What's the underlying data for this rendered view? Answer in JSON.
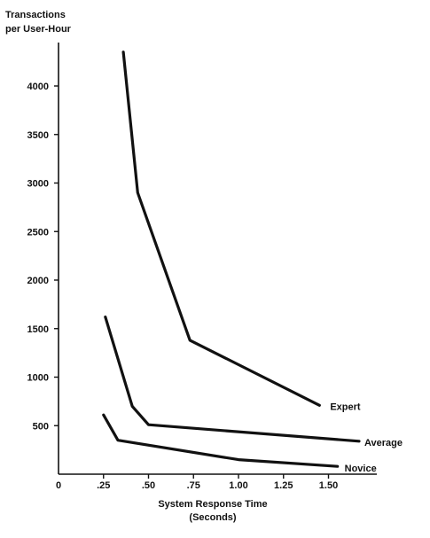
{
  "chart_data": {
    "type": "line",
    "ylabel_lines": [
      "Transactions",
      "per User-Hour"
    ],
    "xlabel_lines": [
      "System Response Time",
      "(Seconds)"
    ],
    "xlim": [
      0,
      1.75
    ],
    "ylim": [
      0,
      4500
    ],
    "x_ticks": [
      {
        "value": 0,
        "label": "0"
      },
      {
        "value": 0.25,
        "label": ".25"
      },
      {
        "value": 0.5,
        "label": ".50"
      },
      {
        "value": 0.75,
        "label": ".75"
      },
      {
        "value": 1.0,
        "label": "1.00"
      },
      {
        "value": 1.25,
        "label": "1.25"
      },
      {
        "value": 1.5,
        "label": "1.50"
      }
    ],
    "y_ticks": [
      {
        "value": 500,
        "label": "500"
      },
      {
        "value": 1000,
        "label": "1000"
      },
      {
        "value": 1500,
        "label": "1500"
      },
      {
        "value": 2000,
        "label": "2000"
      },
      {
        "value": 2500,
        "label": "2500"
      },
      {
        "value": 3000,
        "label": "3000"
      },
      {
        "value": 3500,
        "label": "3500"
      },
      {
        "value": 4000,
        "label": "4000"
      }
    ],
    "grid": false,
    "legend": "none",
    "series": [
      {
        "name": "Expert",
        "x": [
          0.36,
          0.44,
          0.73,
          1.45
        ],
        "y": [
          4350,
          2900,
          1380,
          710
        ]
      },
      {
        "name": "Average",
        "x": [
          0.26,
          0.41,
          0.5,
          1.67
        ],
        "y": [
          1620,
          700,
          510,
          340
        ]
      },
      {
        "name": "Novice",
        "x": [
          0.25,
          0.33,
          1.0,
          1.55
        ],
        "y": [
          610,
          350,
          150,
          80
        ]
      }
    ]
  }
}
